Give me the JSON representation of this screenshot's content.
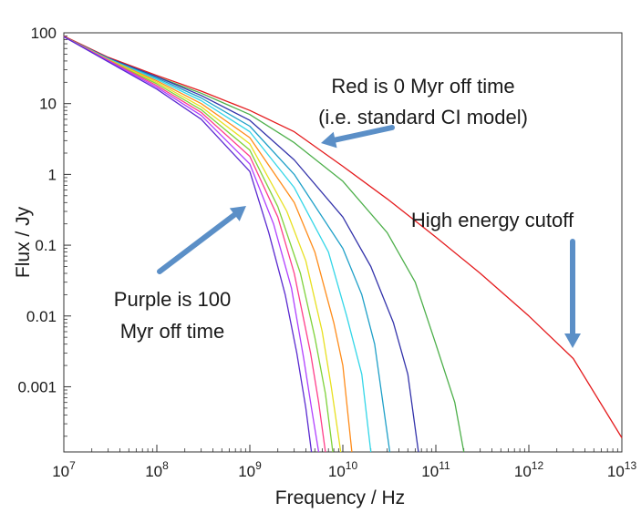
{
  "chart_data": {
    "type": "line",
    "xlabel": "Frequency / Hz",
    "ylabel": "Flux / Jy",
    "x_scale": "log",
    "y_scale": "log",
    "xlim": [
      10000000.0,
      10000000000000.0
    ],
    "ylim": [
      0.00012,
      100
    ],
    "x_ticks": [
      {
        "value": 10000000.0,
        "base": "10",
        "exp": "7"
      },
      {
        "value": 100000000.0,
        "base": "10",
        "exp": "8"
      },
      {
        "value": 1000000000.0,
        "base": "10",
        "exp": "9"
      },
      {
        "value": 10000000000.0,
        "base": "10",
        "exp": "10"
      },
      {
        "value": 100000000000.0,
        "base": "10",
        "exp": "11"
      },
      {
        "value": 1000000000000.0,
        "base": "10",
        "exp": "12"
      },
      {
        "value": 10000000000000.0,
        "base": "10",
        "exp": "13"
      }
    ],
    "y_ticks": [
      {
        "value": 100,
        "label": "100"
      },
      {
        "value": 10,
        "label": "10"
      },
      {
        "value": 1,
        "label": "1"
      },
      {
        "value": 0.1,
        "label": "0.1"
      },
      {
        "value": 0.01,
        "label": "0.01"
      },
      {
        "value": 0.001,
        "label": "0.001"
      }
    ],
    "grid": false,
    "legend": "none",
    "series": [
      {
        "color": "#e41a1c",
        "points": [
          [
            10000000.0,
            90
          ],
          [
            30000000.0,
            45
          ],
          [
            100000000.0,
            25
          ],
          [
            300000000.0,
            15
          ],
          [
            1000000000.0,
            8
          ],
          [
            3000000000.0,
            4
          ],
          [
            10000000000.0,
            1.3
          ],
          [
            30000000000.0,
            0.45
          ],
          [
            100000000000.0,
            0.13
          ],
          [
            300000000000.0,
            0.04
          ],
          [
            1000000000000.0,
            0.01
          ],
          [
            3000000000000.0,
            0.0025
          ],
          [
            10000000000000.0,
            0.00019
          ]
        ]
      },
      {
        "color": "#4daf4a",
        "points": [
          [
            10000000.0,
            88
          ],
          [
            30000000.0,
            44
          ],
          [
            100000000.0,
            24
          ],
          [
            300000000.0,
            14
          ],
          [
            1000000000.0,
            7
          ],
          [
            3000000000.0,
            2.8
          ],
          [
            10000000000.0,
            0.8
          ],
          [
            30000000000.0,
            0.15
          ],
          [
            60000000000.0,
            0.03
          ],
          [
            100000000000.0,
            0.004
          ],
          [
            160000000000.0,
            0.0006
          ],
          [
            200000000000.0,
            0.00012
          ]
        ]
      },
      {
        "color": "#3333aa",
        "points": [
          [
            10000000.0,
            88
          ],
          [
            30000000.0,
            44
          ],
          [
            100000000.0,
            24
          ],
          [
            300000000.0,
            13
          ],
          [
            1000000000.0,
            5.8
          ],
          [
            3000000000.0,
            1.6
          ],
          [
            10000000000.0,
            0.25
          ],
          [
            20000000000.0,
            0.05
          ],
          [
            35000000000.0,
            0.008
          ],
          [
            50000000000.0,
            0.0015
          ],
          [
            65000000000.0,
            0.00012
          ]
        ]
      },
      {
        "color": "#1fa0c8",
        "points": [
          [
            10000000.0,
            88
          ],
          [
            30000000.0,
            43
          ],
          [
            100000000.0,
            23
          ],
          [
            300000000.0,
            12
          ],
          [
            1000000000.0,
            4.8
          ],
          [
            3000000000.0,
            1.0
          ],
          [
            10000000000.0,
            0.09
          ],
          [
            16000000000.0,
            0.02
          ],
          [
            22000000000.0,
            0.004
          ],
          [
            32000000000.0,
            0.00012
          ]
        ]
      },
      {
        "color": "#33d6e8",
        "points": [
          [
            10000000.0,
            88
          ],
          [
            30000000.0,
            43
          ],
          [
            100000000.0,
            22
          ],
          [
            300000000.0,
            11
          ],
          [
            1000000000.0,
            4.0
          ],
          [
            3000000000.0,
            0.65
          ],
          [
            7000000000.0,
            0.08
          ],
          [
            11000000000.0,
            0.01
          ],
          [
            16000000000.0,
            0.0015
          ],
          [
            20000000000.0,
            0.00012
          ]
        ]
      },
      {
        "color": "#ff8c1a",
        "points": [
          [
            10000000.0,
            88
          ],
          [
            30000000.0,
            42
          ],
          [
            100000000.0,
            21
          ],
          [
            300000000.0,
            10
          ],
          [
            1000000000.0,
            3.3
          ],
          [
            3000000000.0,
            0.4
          ],
          [
            5000000000.0,
            0.08
          ],
          [
            8000000000.0,
            0.008
          ],
          [
            10000000000.0,
            0.002
          ],
          [
            12500000000.0,
            0.00012
          ]
        ]
      },
      {
        "color": "#e8e020",
        "points": [
          [
            10000000.0,
            88
          ],
          [
            30000000.0,
            42
          ],
          [
            100000000.0,
            20
          ],
          [
            300000000.0,
            9
          ],
          [
            1000000000.0,
            2.7
          ],
          [
            2500000000.0,
            0.3
          ],
          [
            4000000000.0,
            0.06
          ],
          [
            6000000000.0,
            0.006
          ],
          [
            7500000000.0,
            0.001
          ],
          [
            9500000000.0,
            0.00012
          ]
        ]
      },
      {
        "color": "#7fd23a",
        "points": [
          [
            10000000.0,
            88
          ],
          [
            30000000.0,
            41
          ],
          [
            100000000.0,
            19
          ],
          [
            300000000.0,
            8.2
          ],
          [
            1000000000.0,
            2.2
          ],
          [
            2000000000.0,
            0.35
          ],
          [
            3500000000.0,
            0.04
          ],
          [
            5000000000.0,
            0.005
          ],
          [
            6500000000.0,
            0.0008
          ],
          [
            7800000000.0,
            0.00012
          ]
        ]
      },
      {
        "color": "#ff3d8a",
        "points": [
          [
            10000000.0,
            88
          ],
          [
            30000000.0,
            41
          ],
          [
            100000000.0,
            18
          ],
          [
            300000000.0,
            7.5
          ],
          [
            1000000000.0,
            1.8
          ],
          [
            2000000000.0,
            0.25
          ],
          [
            3000000000.0,
            0.04
          ],
          [
            4500000000.0,
            0.003
          ],
          [
            5500000000.0,
            0.0006
          ],
          [
            6500000000.0,
            0.00012
          ]
        ]
      },
      {
        "color": "#b040ff",
        "points": [
          [
            10000000.0,
            88
          ],
          [
            30000000.0,
            40
          ],
          [
            100000000.0,
            17
          ],
          [
            300000000.0,
            6.8
          ],
          [
            1000000000.0,
            1.4
          ],
          [
            1800000000.0,
            0.2
          ],
          [
            2800000000.0,
            0.025
          ],
          [
            3800000000.0,
            0.0025
          ],
          [
            4600000000.0,
            0.0005
          ],
          [
            5500000000.0,
            0.00012
          ]
        ]
      },
      {
        "color": "#5a2ad0",
        "points": [
          [
            10000000.0,
            88
          ],
          [
            30000000.0,
            39
          ],
          [
            100000000.0,
            16
          ],
          [
            300000000.0,
            6.0
          ],
          [
            1000000000.0,
            1.1
          ],
          [
            1600000000.0,
            0.15
          ],
          [
            2400000000.0,
            0.02
          ],
          [
            3200000000.0,
            0.003
          ],
          [
            4000000000.0,
            0.0005
          ],
          [
            4600000000.0,
            0.00012
          ]
        ]
      }
    ],
    "annotations": [
      {
        "lines": [
          "Red is 0 Myr off time",
          "(i.e. standard CI model)"
        ]
      },
      {
        "lines": [
          "High energy cutoff"
        ]
      },
      {
        "lines": [
          "Purple is 100",
          "Myr off time"
        ]
      }
    ],
    "arrow_color": "#5b8fc7"
  }
}
